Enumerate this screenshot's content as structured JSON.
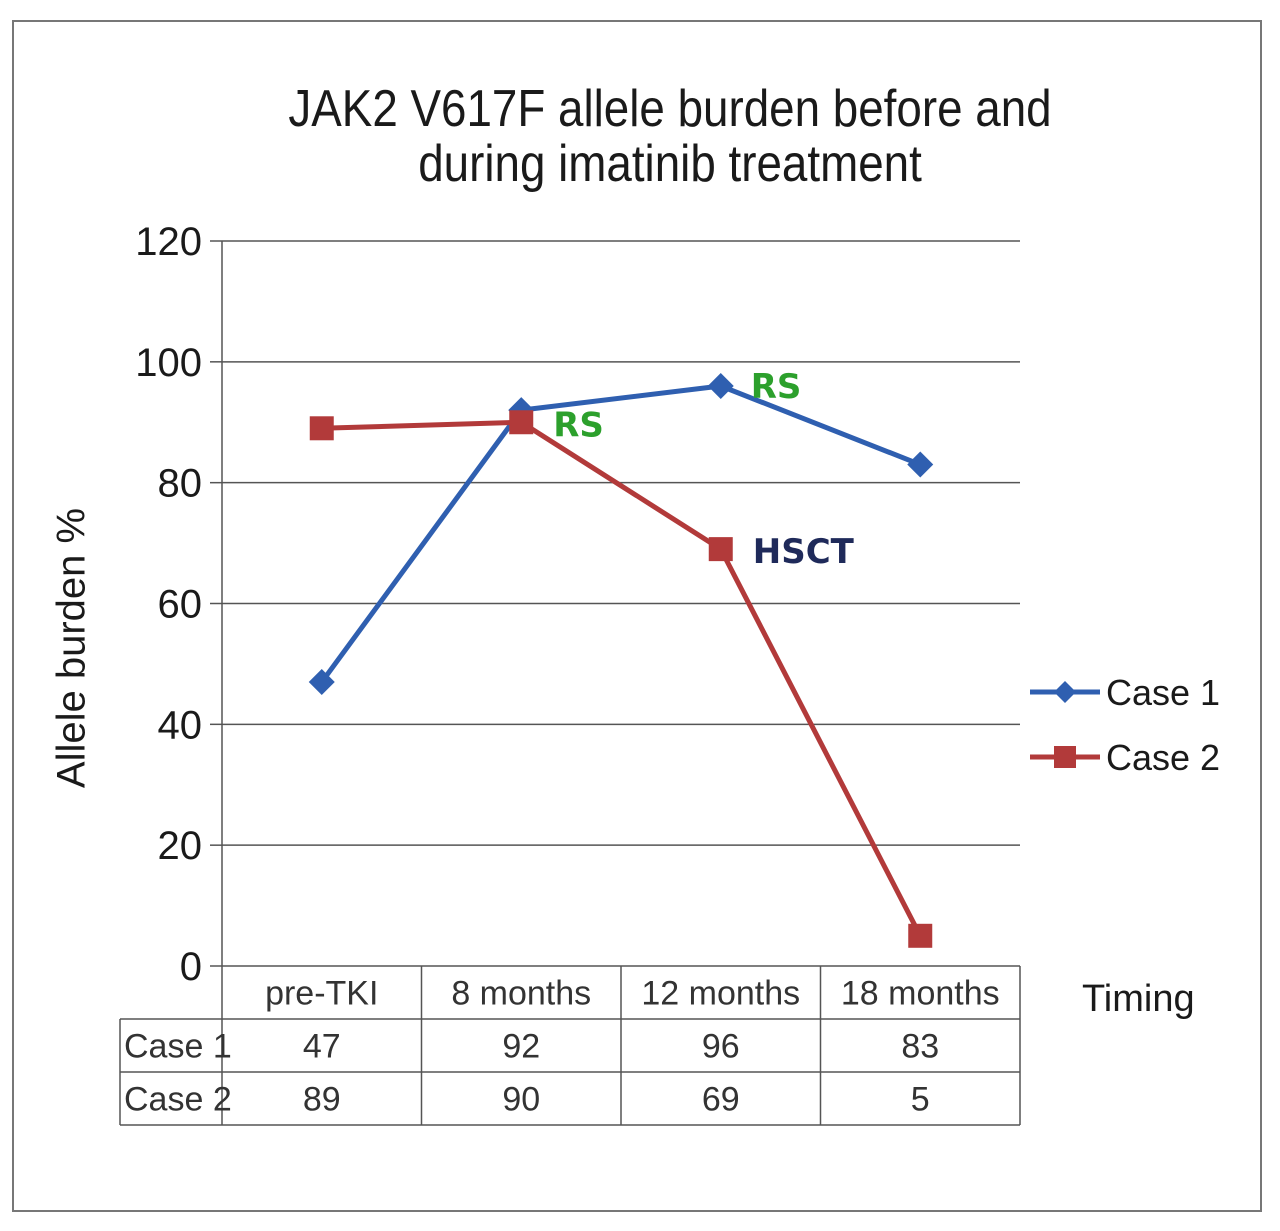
{
  "chart_data": {
    "type": "line",
    "title_line1": "JAK2 V617F allele burden before and",
    "title_line2": "during imatinib treatment",
    "ylabel": "Allele burden %",
    "xlabel": "Timing",
    "ylim": [
      0,
      120
    ],
    "yticks": [
      0,
      20,
      40,
      60,
      80,
      100,
      120
    ],
    "grid": true,
    "legend_position": "right",
    "categories": [
      "pre-TKI",
      "8 months",
      "12 months",
      "18 months"
    ],
    "series": [
      {
        "name": "Case 1",
        "color": "#2f5fb0",
        "marker": "diamond",
        "values": [
          47,
          92,
          96,
          83
        ]
      },
      {
        "name": "Case 2",
        "color": "#b23a3a",
        "marker": "square",
        "values": [
          89,
          90,
          69,
          5
        ]
      }
    ],
    "annotations": [
      {
        "text": "RS",
        "series": 1,
        "index": 1,
        "style": "rs"
      },
      {
        "text": "RS",
        "series": 0,
        "index": 2,
        "style": "rs"
      },
      {
        "text": "HSCT",
        "series": 1,
        "index": 2,
        "style": "hsct"
      }
    ]
  }
}
